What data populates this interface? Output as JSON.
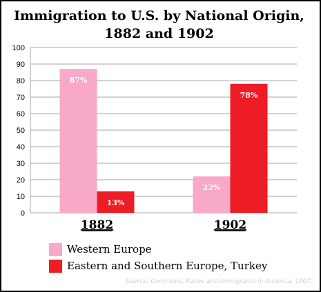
{
  "chart_data": {
    "type": "bar",
    "title_line1": "Immigration to U.S. by National Origin,",
    "title_line2": "1882 and 1902",
    "categories": [
      "1882",
      "1902"
    ],
    "series": [
      {
        "name": "Western Europe",
        "values": [
          87,
          22
        ],
        "labels": [
          "87%",
          "22%"
        ],
        "color": "#f9a9c8"
      },
      {
        "name": "Eastern and Southern Europe, Turkey",
        "values": [
          13,
          78
        ],
        "labels": [
          "13%",
          "78%"
        ],
        "color": "#ee1c25"
      }
    ],
    "ylim": [
      0,
      100
    ],
    "yticks": [
      0,
      10,
      20,
      30,
      40,
      50,
      60,
      70,
      80,
      90,
      100
    ],
    "grid": true,
    "legend_position": "bottom-left",
    "gridline_color": "#a6a6a6",
    "source": "Source: Commons, Races and Immigrants in America, 1907."
  }
}
